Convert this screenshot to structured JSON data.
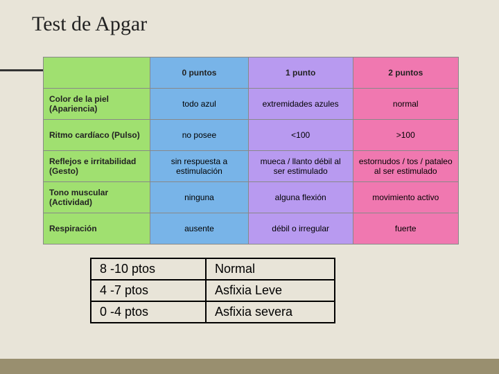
{
  "title": "Test de Apgar",
  "colors": {
    "page_bg": "#e8e4d8",
    "footer_bg": "#998f6f",
    "green": "#a0e070",
    "blue": "#78b4e8",
    "purple": "#b89af0",
    "pink": "#f078b0",
    "border": "#888888",
    "score_border": "#000000"
  },
  "main_table": {
    "columns": [
      {
        "label": "0 puntos",
        "color": "#78b4e8"
      },
      {
        "label": "1 punto",
        "color": "#b89af0"
      },
      {
        "label": "2 puntos",
        "color": "#f078b0"
      }
    ],
    "row_header_color": "#a0e070",
    "corner_color": "#a0e070",
    "rows": [
      {
        "label": "Color de la piel (Apariencia)",
        "cells": [
          "todo azul",
          "extremidades azules",
          "normal"
        ]
      },
      {
        "label": "Ritmo cardíaco (Pulso)",
        "cells": [
          "no posee",
          "<100",
          ">100"
        ]
      },
      {
        "label": "Reflejos e irritabilidad (Gesto)",
        "cells": [
          "sin respuesta a estimulación",
          "mueca / llanto débil al ser estimulado",
          "estornudos / tos / pataleo al ser estimulado"
        ]
      },
      {
        "label": "Tono muscular (Actividad)",
        "cells": [
          "ninguna",
          "alguna flexión",
          "movimiento activo"
        ]
      },
      {
        "label": "Respiración",
        "cells": [
          "ausente",
          "débil o irregular",
          "fuerte"
        ]
      }
    ]
  },
  "score_table": {
    "rows": [
      {
        "range": "8 -10 ptos",
        "meaning": "Normal"
      },
      {
        "range": "4 -7 ptos",
        "meaning": "Asfixia Leve"
      },
      {
        "range": "0 -4 ptos",
        "meaning": "Asfixia severa"
      }
    ]
  }
}
